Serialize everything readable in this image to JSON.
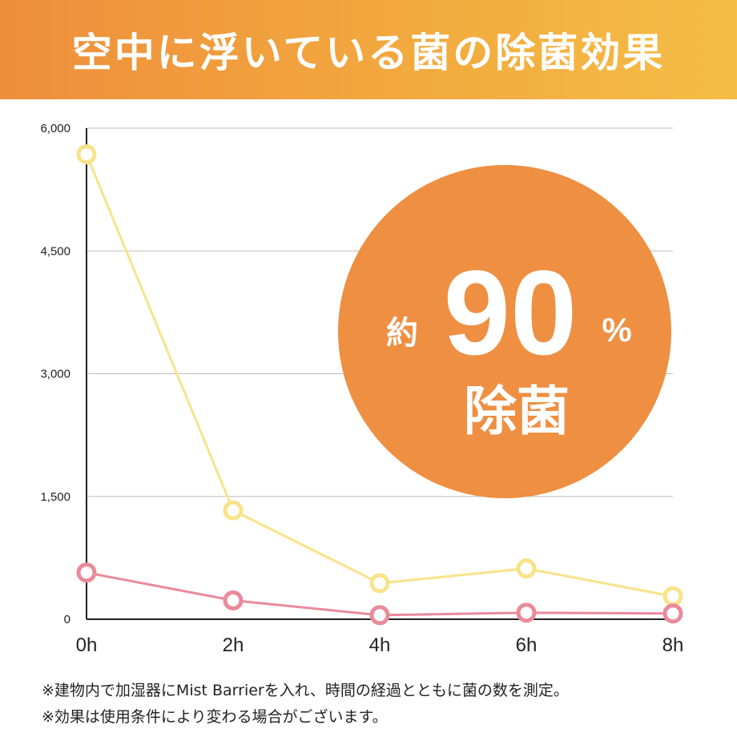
{
  "header": {
    "title": "空中に浮いている菌の除菌効果"
  },
  "badge": {
    "prefix": "約",
    "value": "90",
    "unit": "%",
    "label": "除菌"
  },
  "notes": [
    "※建物内で加湿器にMist Barrierを入れ、時間の経過とともに菌の数を測定。",
    "※効果は使用条件により変わる場合がございます。"
  ],
  "colors": {
    "header_start": "#ee8e3c",
    "header_end": "#f5bd45",
    "badge": "#ee8f42",
    "yellow_series": "#f8e389",
    "pink_series": "#ea8a9a"
  },
  "chart_data": {
    "type": "line",
    "x": [
      "0h",
      "2h",
      "4h",
      "6h",
      "8h"
    ],
    "ylim": [
      0,
      6000
    ],
    "yticks": [
      "0",
      "1,500",
      "3,000",
      "4,500",
      "6,000"
    ],
    "ytick_values": [
      0,
      1500,
      3000,
      4500,
      6000
    ],
    "grid": true,
    "series": [
      {
        "color": "#f8e389",
        "values": [
          5680,
          1330,
          440,
          620,
          280
        ]
      },
      {
        "color": "#ea8a9a",
        "values": [
          570,
          230,
          50,
          80,
          70
        ]
      }
    ]
  }
}
